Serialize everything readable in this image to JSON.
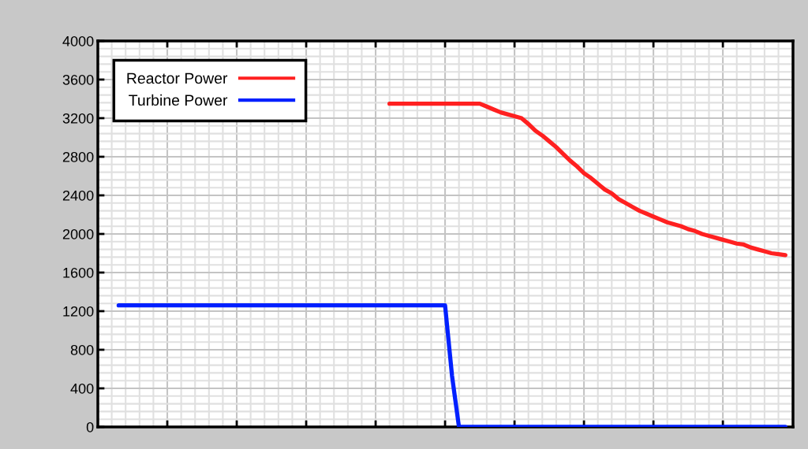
{
  "chart_data": {
    "type": "line",
    "categories": [
      null,
      null,
      null,
      null,
      null,
      null,
      null,
      null,
      null,
      null,
      null,
      null,
      null,
      null,
      null,
      null,
      null,
      null,
      null,
      null,
      null,
      null,
      null,
      null,
      null,
      null,
      null,
      null,
      null,
      null,
      null,
      null,
      null,
      null,
      null,
      null,
      null,
      null,
      null,
      null,
      null,
      null,
      null,
      null,
      null,
      null,
      null,
      null,
      null,
      null,
      null,
      null,
      null,
      null,
      null,
      null,
      null,
      null,
      null,
      null,
      null,
      null,
      null,
      null,
      null,
      null,
      null,
      null,
      null,
      null,
      null,
      null,
      null,
      null,
      null,
      null,
      null,
      null,
      null,
      null,
      null,
      null,
      null,
      null,
      null,
      null,
      null,
      null,
      null,
      null,
      null,
      null,
      null,
      null,
      null,
      null,
      null
    ],
    "series": [
      {
        "name": "Reactor Power",
        "color": "#ff2020",
        "values": [
          null,
          null,
          null,
          null,
          null,
          null,
          null,
          null,
          null,
          null,
          null,
          null,
          null,
          null,
          null,
          null,
          null,
          null,
          null,
          null,
          null,
          null,
          null,
          null,
          null,
          null,
          null,
          null,
          null,
          null,
          null,
          null,
          null,
          null,
          null,
          null,
          null,
          null,
          null,
          3350,
          3350,
          3350,
          3350,
          3350,
          3350,
          3350,
          3350,
          3350,
          3350,
          3350,
          3350,
          3350,
          3350,
          3320,
          3290,
          3260,
          3240,
          3220,
          3200,
          3140,
          3070,
          3020,
          2960,
          2900,
          2830,
          2760,
          2700,
          2630,
          2580,
          2520,
          2460,
          2420,
          2360,
          2320,
          2280,
          2240,
          2210,
          2180,
          2150,
          2120,
          2100,
          2080,
          2050,
          2030,
          2000,
          1980,
          1960,
          1940,
          1920,
          1900,
          1890,
          1860,
          1840,
          1820,
          1800,
          1790,
          1780
        ]
      },
      {
        "name": "Turbine Power",
        "color": "#0020ff",
        "values": [
          1260,
          1260,
          1260,
          1260,
          1260,
          1260,
          1260,
          1260,
          1260,
          1260,
          1260,
          1260,
          1260,
          1260,
          1260,
          1260,
          1260,
          1260,
          1260,
          1260,
          1260,
          1260,
          1260,
          1260,
          1260,
          1260,
          1260,
          1260,
          1260,
          1260,
          1260,
          1260,
          1260,
          1260,
          1260,
          1260,
          1260,
          1260,
          1260,
          1260,
          1260,
          1260,
          1260,
          1260,
          1260,
          1260,
          1260,
          1260,
          530,
          0,
          0,
          0,
          0,
          0,
          0,
          0,
          0,
          0,
          0,
          0,
          0,
          0,
          0,
          0,
          0,
          0,
          0,
          0,
          0,
          0,
          0,
          0,
          0,
          0,
          0,
          0,
          0,
          0,
          0,
          0,
          0,
          0,
          0,
          0,
          0,
          0,
          0,
          0,
          0,
          0,
          0,
          0,
          0,
          0,
          0,
          0,
          0
        ]
      }
    ],
    "ylim": [
      0,
      4000
    ],
    "yticks": [
      0,
      400,
      800,
      1200,
      1600,
      2000,
      2400,
      2800,
      3200,
      3600,
      4000
    ],
    "grid": true,
    "legend": "top left",
    "tick_labels": "y",
    "marker": "none",
    "line_style": "solid"
  }
}
